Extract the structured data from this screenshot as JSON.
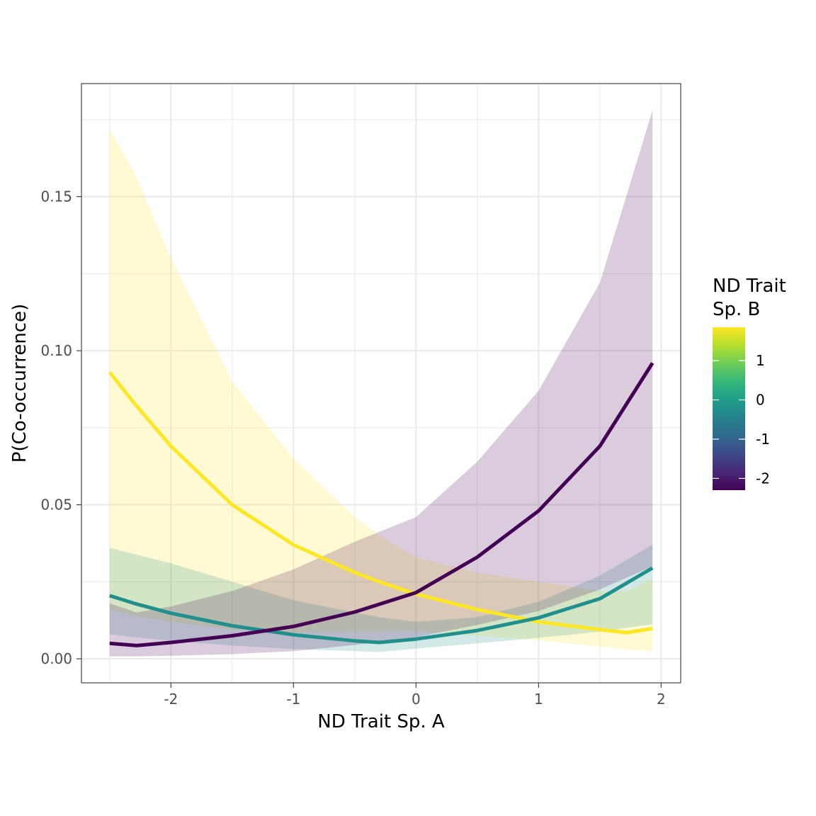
{
  "chart_data": {
    "type": "line",
    "xlabel": "ND Trait Sp. A",
    "ylabel": "P(Co-occurrence)",
    "xlim": [
      -2.73,
      2.16
    ],
    "ylim": [
      -0.0078,
      0.1867
    ],
    "x_ticks": [
      -2,
      -1,
      0,
      1,
      2
    ],
    "x_tick_labels": [
      "-2",
      "-1",
      "0",
      "1",
      "2"
    ],
    "y_ticks": [
      0.0,
      0.05,
      0.1,
      0.15
    ],
    "y_tick_labels": [
      "0.00",
      "0.05",
      "0.10",
      "0.15"
    ],
    "grid": true,
    "legend": {
      "title_lines": [
        "ND Trait",
        "Sp. B"
      ],
      "placement": "right",
      "range": [
        -2.3,
        1.85
      ],
      "ticks": [
        1,
        0,
        -1,
        -2
      ],
      "tick_labels": [
        "1",
        "0",
        "-1",
        "-2"
      ],
      "colormap": "viridis"
    },
    "series": [
      {
        "legend_value": 1.85,
        "color": "#FDE725",
        "ribbon_opacity": 0.2,
        "x": [
          -2.5,
          -2.3,
          -2.0,
          -1.5,
          -1.0,
          -0.5,
          -0.3,
          0.0,
          0.5,
          1.0,
          1.5,
          1.72,
          1.93
        ],
        "y": [
          0.093,
          0.083,
          0.069,
          0.05,
          0.037,
          0.028,
          0.025,
          0.021,
          0.016,
          0.012,
          0.0095,
          0.0085,
          0.0098
        ],
        "lower": [
          0.016,
          0.014,
          0.012,
          0.0095,
          0.0085,
          0.0088,
          0.0088,
          0.009,
          0.0075,
          0.006,
          0.004,
          0.003,
          0.0025
        ],
        "upper": [
          0.172,
          0.158,
          0.13,
          0.09,
          0.065,
          0.046,
          0.04,
          0.033,
          0.028,
          0.025,
          0.022,
          0.022,
          0.026
        ]
      },
      {
        "legend_value": -0.25,
        "color": "#21908C",
        "ribbon_opacity": 0.2,
        "x": [
          -2.5,
          -2.3,
          -2.0,
          -1.5,
          -1.0,
          -0.5,
          -0.3,
          0.0,
          0.5,
          1.0,
          1.5,
          1.93
        ],
        "y": [
          0.0205,
          0.018,
          0.0148,
          0.0107,
          0.0078,
          0.0058,
          0.0053,
          0.0064,
          0.0092,
          0.0133,
          0.0195,
          0.0295
        ],
        "lower": [
          0.008,
          0.007,
          0.0058,
          0.0043,
          0.0032,
          0.0025,
          0.0022,
          0.0033,
          0.005,
          0.0068,
          0.0088,
          0.0112
        ],
        "upper": [
          0.036,
          0.034,
          0.031,
          0.025,
          0.019,
          0.015,
          0.0135,
          0.012,
          0.0135,
          0.0185,
          0.027,
          0.037
        ]
      },
      {
        "legend_value": -2.3,
        "color": "#440154",
        "ribbon_opacity": 0.2,
        "x": [
          -2.5,
          -2.28,
          -2.0,
          -1.5,
          -1.0,
          -0.5,
          0.0,
          0.5,
          1.0,
          1.5,
          1.93
        ],
        "y": [
          0.005,
          0.0043,
          0.0053,
          0.0075,
          0.0105,
          0.0152,
          0.0215,
          0.033,
          0.048,
          0.069,
          0.096
        ],
        "lower": [
          0.0008,
          0.0008,
          0.001,
          0.0015,
          0.0025,
          0.0045,
          0.007,
          0.011,
          0.0155,
          0.0225,
          0.03
        ],
        "upper": [
          0.018,
          0.015,
          0.017,
          0.022,
          0.029,
          0.038,
          0.046,
          0.064,
          0.087,
          0.122,
          0.178
        ]
      }
    ]
  }
}
